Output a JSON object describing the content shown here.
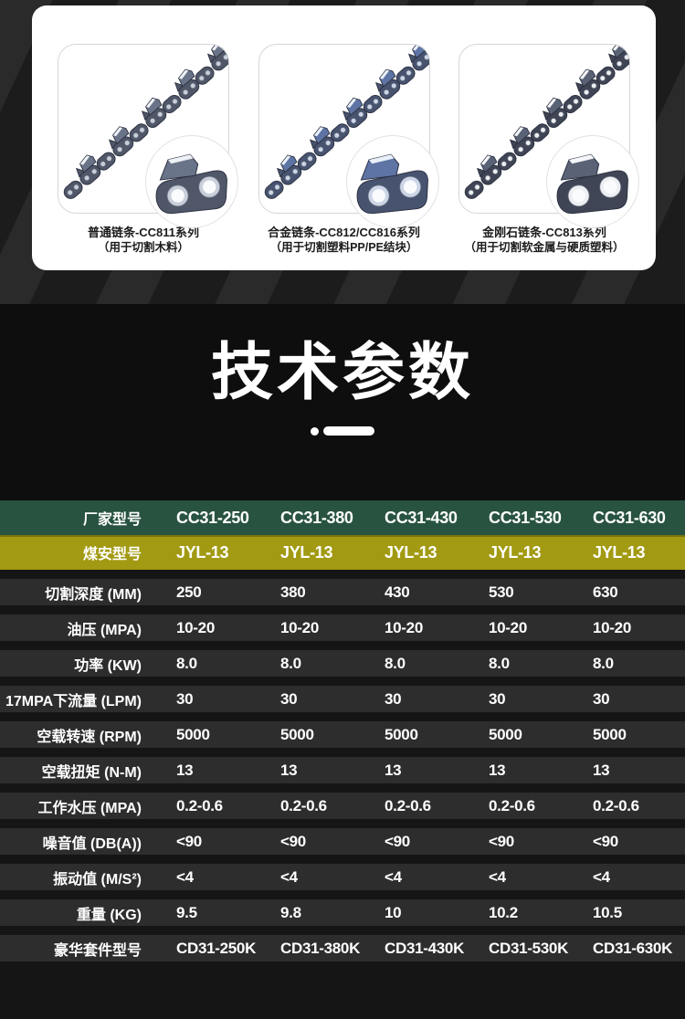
{
  "top_section": {
    "tiles": [
      {
        "title": "普通链条-CC811系列",
        "subtitle": "（用于切割木料）"
      },
      {
        "title": "合金链条-CC812/CC816系列",
        "subtitle": "（用于切割塑料PP/PE结块）"
      },
      {
        "title": "金刚石链条-CC813系列",
        "subtitle": "（用于切割软金属与硬质塑料）"
      }
    ]
  },
  "title_section": {
    "title": "技术参数"
  },
  "table": {
    "header_row": {
      "label": "厂家型号",
      "bg": "#285340",
      "values": [
        "CC31-250",
        "CC31-380",
        "CC31-430",
        "CC31-530",
        "CC31-630"
      ]
    },
    "subheader_row": {
      "label": "煤安型号",
      "bg": "#a29a12",
      "values": [
        "JYL-13",
        "JYL-13",
        "JYL-13",
        "JYL-13",
        "JYL-13"
      ]
    },
    "rows": [
      {
        "label": "切割深度 (MM)",
        "values": [
          "250",
          "380",
          "430",
          "530",
          "630"
        ]
      },
      {
        "label": "油压 (MPA)",
        "values": [
          "10-20",
          "10-20",
          "10-20",
          "10-20",
          "10-20"
        ]
      },
      {
        "label": "功率 (KW)",
        "values": [
          "8.0",
          "8.0",
          "8.0",
          "8.0",
          "8.0"
        ]
      },
      {
        "label": "17MPA下流量 (LPM)",
        "values": [
          "30",
          "30",
          "30",
          "30",
          "30"
        ]
      },
      {
        "label": "空载转速 (RPM)",
        "values": [
          "5000",
          "5000",
          "5000",
          "5000",
          "5000"
        ]
      },
      {
        "label": "空载扭矩 (N-M)",
        "values": [
          "13",
          "13",
          "13",
          "13",
          "13"
        ]
      },
      {
        "label": "工作水压 (MPA)",
        "values": [
          "0.2-0.6",
          "0.2-0.6",
          "0.2-0.6",
          "0.2-0.6",
          "0.2-0.6"
        ]
      },
      {
        "label": "噪音值 (DB(A))",
        "values": [
          "<90",
          "<90",
          "<90",
          "<90",
          "<90"
        ]
      },
      {
        "label": "振动值 (M/S²)",
        "values": [
          "<4",
          "<4",
          "<4",
          "<4",
          "<4"
        ]
      },
      {
        "label": "重量 (KG)",
        "values": [
          "9.5",
          "9.8",
          "10",
          "10.2",
          "10.5"
        ]
      },
      {
        "label": "豪华套件型号",
        "values": [
          "CD31-250K",
          "CD31-380K",
          "CD31-430K",
          "CD31-530K",
          "CD31-630K"
        ]
      }
    ]
  },
  "colors": {
    "header_green": "#285340",
    "subheader_olive": "#a29a12",
    "row_band": "#2d2d2d",
    "page_dark": "#151515"
  }
}
